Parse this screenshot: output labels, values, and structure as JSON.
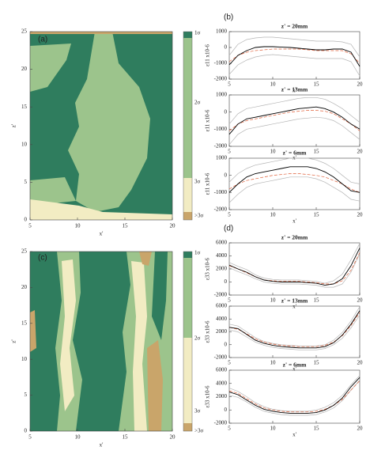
{
  "chart_data": [
    {
      "type": "map",
      "panel_label": "(a)",
      "xlabel": "x'",
      "ylabel": "z'",
      "xlim": [
        5,
        20
      ],
      "ylim": [
        0,
        25
      ],
      "xticks": [
        5,
        10,
        15,
        20
      ],
      "yticks": [
        0,
        5,
        10,
        15,
        20,
        25
      ],
      "colorbar": {
        "labels": [
          "1σ",
          "2σ",
          "3σ",
          ">3σ"
        ],
        "colors": [
          "#2f7d5e",
          "#9cc48c",
          "#f2ecc3",
          "#c9a56a"
        ]
      }
    },
    {
      "type": "line",
      "panel_label": "(b)",
      "title": "z' = 20mm",
      "xlabel": "x'",
      "ylabel": "ε11 x10-6",
      "xlim": [
        5,
        20
      ],
      "ylim": [
        -2000,
        1000
      ],
      "xticks": [
        5,
        10,
        15,
        20
      ],
      "yticks": [
        -2000,
        -1000,
        0,
        1000
      ],
      "x": [
        5,
        6,
        7,
        8,
        9,
        10,
        11,
        12,
        13,
        14,
        15,
        16,
        17,
        18,
        19,
        20
      ],
      "series": [
        {
          "color": "#b5b5b5",
          "style": "solid",
          "values": [
            -500,
            200,
            500,
            600,
            650,
            650,
            600,
            550,
            500,
            450,
            400,
            400,
            400,
            350,
            200,
            -600
          ]
        },
        {
          "color": "#b5b5b5",
          "style": "solid",
          "values": [
            -1700,
            -1100,
            -800,
            -600,
            -500,
            -450,
            -500,
            -550,
            -600,
            -650,
            -700,
            -700,
            -700,
            -700,
            -900,
            -1800
          ]
        },
        {
          "color": "#e0603a",
          "style": "dashed",
          "values": [
            -900,
            -500,
            -300,
            -200,
            -150,
            -100,
            -100,
            -100,
            -100,
            -150,
            -200,
            -200,
            -200,
            -200,
            -400,
            -1000
          ]
        },
        {
          "color": "#000000",
          "style": "solid",
          "values": [
            -1100,
            -500,
            -200,
            0,
            50,
            50,
            20,
            0,
            -50,
            -100,
            -150,
            -150,
            -100,
            -100,
            -300,
            -1200
          ]
        }
      ]
    },
    {
      "type": "line",
      "title": "z' = 13mm",
      "xlabel": "x'",
      "ylabel": "ε11 x10-6",
      "xlim": [
        5,
        20
      ],
      "ylim": [
        -2000,
        1000
      ],
      "xticks": [
        5,
        10,
        15,
        20
      ],
      "yticks": [
        -2000,
        -1000,
        0,
        1000
      ],
      "x": [
        5,
        6,
        7,
        8,
        9,
        10,
        11,
        12,
        13,
        14,
        15,
        16,
        17,
        18,
        19,
        20
      ],
      "series": [
        {
          "color": "#b5b5b5",
          "style": "solid",
          "values": [
            -700,
            -100,
            200,
            300,
            400,
            500,
            600,
            700,
            800,
            850,
            850,
            750,
            500,
            200,
            -200,
            -600
          ]
        },
        {
          "color": "#b5b5b5",
          "style": "solid",
          "values": [
            -1900,
            -1300,
            -1000,
            -900,
            -800,
            -700,
            -600,
            -500,
            -400,
            -350,
            -300,
            -350,
            -500,
            -800,
            -1200,
            -1600
          ]
        },
        {
          "color": "#e0603a",
          "style": "dashed",
          "values": [
            -1100,
            -700,
            -500,
            -400,
            -300,
            -200,
            -100,
            0,
            50,
            100,
            100,
            50,
            -100,
            -400,
            -700,
            -1100
          ]
        },
        {
          "color": "#000000",
          "style": "solid",
          "values": [
            -1300,
            -700,
            -400,
            -300,
            -200,
            -100,
            0,
            100,
            200,
            250,
            300,
            200,
            0,
            -300,
            -700,
            -1000
          ]
        }
      ]
    },
    {
      "type": "line",
      "title": "z' = 6mm",
      "xlabel": "x'",
      "ylabel": "ε11 x10-6",
      "xlim": [
        5,
        20
      ],
      "ylim": [
        -2000,
        1000
      ],
      "xticks": [
        5,
        10,
        15,
        20
      ],
      "yticks": [
        -2000,
        -1000,
        0,
        1000
      ],
      "x": [
        5,
        6,
        7,
        8,
        9,
        10,
        11,
        12,
        13,
        14,
        15,
        16,
        17,
        18,
        19,
        20
      ],
      "series": [
        {
          "color": "#b5b5b5",
          "style": "solid",
          "values": [
            -400,
            100,
            400,
            600,
            700,
            800,
            900,
            1000,
            1000,
            1000,
            900,
            700,
            400,
            0,
            -400,
            -500
          ]
        },
        {
          "color": "#b5b5b5",
          "style": "solid",
          "values": [
            -1600,
            -1100,
            -700,
            -500,
            -400,
            -300,
            -200,
            -100,
            -100,
            -100,
            -200,
            -400,
            -700,
            -1000,
            -1400,
            -1500
          ]
        },
        {
          "color": "#e0603a",
          "style": "dashed",
          "values": [
            -800,
            -500,
            -300,
            -200,
            -100,
            0,
            50,
            100,
            100,
            50,
            0,
            -100,
            -300,
            -500,
            -800,
            -1000
          ]
        },
        {
          "color": "#000000",
          "style": "solid",
          "values": [
            -1000,
            -500,
            -100,
            100,
            200,
            300,
            400,
            500,
            500,
            500,
            400,
            200,
            -100,
            -500,
            -900,
            -1000
          ]
        }
      ]
    },
    {
      "type": "map",
      "panel_label": "(c)",
      "xlabel": "x'",
      "ylabel": "z'",
      "xlim": [
        5,
        20
      ],
      "ylim": [
        0,
        25
      ],
      "xticks": [
        5,
        10,
        15,
        20
      ],
      "yticks": [
        0,
        5,
        10,
        15,
        20,
        25
      ],
      "colorbar": {
        "labels": [
          "1σ",
          "2σ",
          "3σ",
          ">3σ"
        ],
        "colors": [
          "#2f7d5e",
          "#9cc48c",
          "#f2ecc3",
          "#c9a56a"
        ]
      }
    },
    {
      "type": "line",
      "panel_label": "(d)",
      "title": "z' = 20mm",
      "xlabel": "x'",
      "ylabel": "ε33 x10-6",
      "xlim": [
        5,
        20
      ],
      "ylim": [
        -2000,
        6000
      ],
      "xticks": [
        5,
        10,
        15,
        20
      ],
      "yticks": [
        -2000,
        0,
        2000,
        4000,
        6000
      ],
      "x": [
        5,
        6,
        7,
        8,
        9,
        10,
        11,
        12,
        13,
        14,
        15,
        16,
        17,
        18,
        19,
        20
      ],
      "series": [
        {
          "color": "#b5b5b5",
          "style": "solid",
          "values": [
            3000,
            2400,
            1900,
            1100,
            600,
            400,
            300,
            300,
            300,
            200,
            100,
            -200,
            200,
            1200,
            3400,
            5900
          ]
        },
        {
          "color": "#b5b5b5",
          "style": "solid",
          "values": [
            2200,
            1600,
            1100,
            500,
            0,
            -200,
            -300,
            -300,
            -300,
            -400,
            -500,
            -800,
            -800,
            -300,
            1500,
            4300
          ]
        },
        {
          "color": "#e0603a",
          "style": "dashed",
          "values": [
            2500,
            2000,
            1400,
            800,
            300,
            200,
            100,
            100,
            100,
            0,
            -100,
            -300,
            -300,
            200,
            1800,
            4500
          ]
        },
        {
          "color": "#000000",
          "style": "solid",
          "values": [
            2600,
            2000,
            1500,
            800,
            300,
            100,
            0,
            0,
            0,
            -100,
            -200,
            -500,
            -300,
            500,
            2500,
            5200
          ]
        }
      ]
    },
    {
      "type": "line",
      "title": "z' = 13mm",
      "xlabel": "x'",
      "ylabel": "ε33 x10-6",
      "xlim": [
        5,
        20
      ],
      "ylim": [
        -2000,
        6000
      ],
      "xticks": [
        5,
        10,
        15,
        20
      ],
      "yticks": [
        -2000,
        0,
        2000,
        4000,
        6000
      ],
      "x": [
        5,
        6,
        7,
        8,
        9,
        10,
        11,
        12,
        13,
        14,
        15,
        16,
        17,
        18,
        19,
        20
      ],
      "series": [
        {
          "color": "#b5b5b5",
          "style": "solid",
          "values": [
            3200,
            2900,
            2000,
            1100,
            500,
            200,
            0,
            -100,
            -200,
            -200,
            -200,
            0,
            700,
            1900,
            3700,
            5900
          ]
        },
        {
          "color": "#b5b5b5",
          "style": "solid",
          "values": [
            2300,
            2000,
            1200,
            400,
            -100,
            -400,
            -600,
            -700,
            -800,
            -800,
            -800,
            -600,
            0,
            1000,
            2600,
            4600
          ]
        },
        {
          "color": "#e0603a",
          "style": "dashed",
          "values": [
            2700,
            2400,
            1700,
            900,
            400,
            100,
            -100,
            -200,
            -300,
            -300,
            -300,
            -100,
            400,
            1400,
            3000,
            5000
          ]
        },
        {
          "color": "#000000",
          "style": "solid",
          "values": [
            2700,
            2500,
            1600,
            700,
            200,
            -100,
            -300,
            -400,
            -500,
            -500,
            -500,
            -300,
            300,
            1500,
            3200,
            5300
          ]
        }
      ]
    },
    {
      "type": "line",
      "title": "z' = 6mm",
      "xlabel": "x'",
      "ylabel": "ε33 x10-6",
      "xlim": [
        5,
        20
      ],
      "ylim": [
        -2000,
        6000
      ],
      "xticks": [
        5,
        10,
        15,
        20
      ],
      "yticks": [
        -2000,
        0,
        2000,
        4000,
        6000
      ],
      "x": [
        5,
        6,
        7,
        8,
        9,
        10,
        11,
        12,
        13,
        14,
        15,
        16,
        17,
        18,
        19,
        20
      ],
      "series": [
        {
          "color": "#b5b5b5",
          "style": "solid",
          "values": [
            3300,
            2800,
            2000,
            1100,
            500,
            100,
            -100,
            -200,
            -200,
            -200,
            0,
            400,
            1100,
            2200,
            3800,
            5200
          ]
        },
        {
          "color": "#b5b5b5",
          "style": "solid",
          "values": [
            2200,
            1900,
            1200,
            400,
            -200,
            -500,
            -700,
            -800,
            -800,
            -800,
            -700,
            -300,
            300,
            1400,
            3000,
            4500
          ]
        },
        {
          "color": "#e0603a",
          "style": "dashed",
          "values": [
            2900,
            2500,
            1700,
            900,
            300,
            0,
            -200,
            -300,
            -300,
            -300,
            -200,
            100,
            700,
            1600,
            3000,
            4400
          ]
        },
        {
          "color": "#000000",
          "style": "solid",
          "values": [
            2700,
            2300,
            1500,
            700,
            100,
            -200,
            -400,
            -500,
            -500,
            -500,
            -400,
            0,
            700,
            1800,
            3500,
            4900
          ]
        }
      ]
    }
  ]
}
